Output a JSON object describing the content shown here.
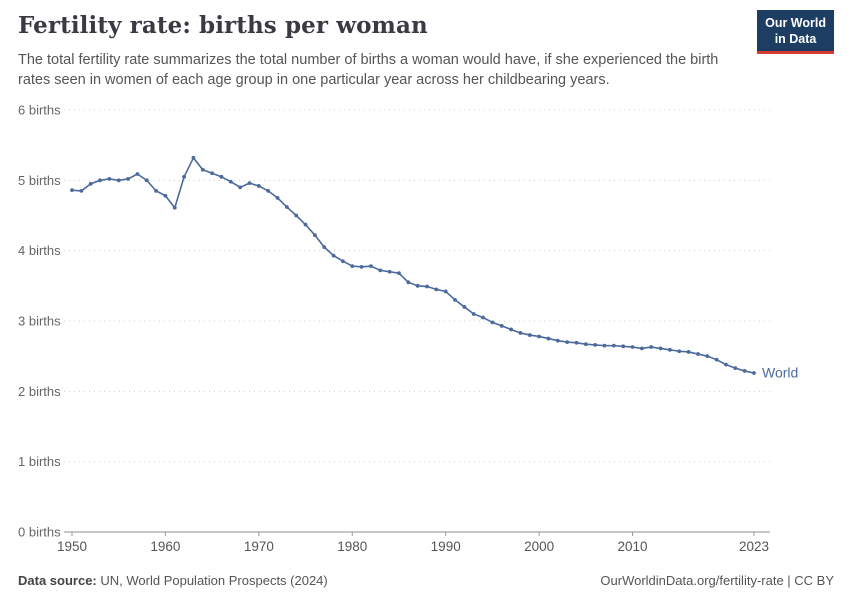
{
  "header": {
    "title": "Fertility rate: births per woman",
    "subtitle": "The total fertility rate summarizes the total number of births a woman would have, if she experienced the birth rates seen in women of each age group in one particular year across her childbearing years.",
    "logo_line1": "Our World",
    "logo_line2": "in Data"
  },
  "colors": {
    "series_world": "#4c6a9c",
    "logo_background": "#1d3d63",
    "logo_accent": "#d73c34",
    "gridline": "#d0d0d0",
    "axis": "#8f8f8f",
    "tick_label": "#666666"
  },
  "chart_data": {
    "type": "line",
    "title": "Fertility rate: births per woman",
    "xlabel": "",
    "ylabel": "",
    "xlim": [
      1950,
      2023
    ],
    "ylim": [
      0,
      6
    ],
    "grid": true,
    "legend_position": "end-of-line",
    "x_ticks": [
      1950,
      1960,
      1970,
      1980,
      1990,
      2000,
      2010,
      2023
    ],
    "y_ticks": [
      {
        "value": 6,
        "label": "6 births"
      },
      {
        "value": 5,
        "label": "5 births"
      },
      {
        "value": 4,
        "label": "4 births"
      },
      {
        "value": 3,
        "label": "3 births"
      },
      {
        "value": 2,
        "label": "2 births"
      },
      {
        "value": 1,
        "label": "1 births"
      },
      {
        "value": 0,
        "label": "0 births"
      }
    ],
    "series": [
      {
        "name": "World",
        "color": "#4c6a9c",
        "start_year": 1950,
        "values": [
          4.86,
          4.85,
          4.95,
          5.0,
          5.02,
          5.0,
          5.02,
          5.09,
          5.0,
          4.85,
          4.78,
          4.61,
          5.05,
          5.32,
          5.15,
          5.1,
          5.05,
          4.98,
          4.9,
          4.96,
          4.92,
          4.85,
          4.75,
          4.62,
          4.5,
          4.37,
          4.22,
          4.05,
          3.93,
          3.85,
          3.78,
          3.77,
          3.78,
          3.72,
          3.7,
          3.68,
          3.55,
          3.5,
          3.49,
          3.45,
          3.42,
          3.3,
          3.2,
          3.1,
          3.05,
          2.98,
          2.93,
          2.88,
          2.83,
          2.8,
          2.78,
          2.75,
          2.72,
          2.7,
          2.69,
          2.67,
          2.66,
          2.65,
          2.65,
          2.64,
          2.63,
          2.61,
          2.63,
          2.61,
          2.59,
          2.57,
          2.56,
          2.53,
          2.5,
          2.45,
          2.38,
          2.33,
          2.29,
          2.26
        ]
      }
    ]
  },
  "footer": {
    "source_label": "Data source:",
    "source_value": "UN, World Population Prospects (2024)",
    "attribution": "OurWorldinData.org/fertility-rate | CC BY"
  }
}
